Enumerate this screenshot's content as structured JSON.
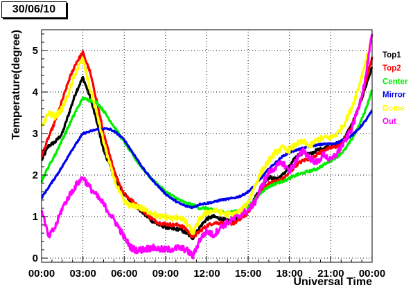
{
  "chart_data": {
    "type": "line",
    "title": "30/06/10",
    "xlabel": "Universal Time",
    "ylabel": "Temperature(degree)",
    "xlim": [
      0,
      24
    ],
    "ylim": [
      -0.1,
      5.5
    ],
    "x_ticks": [
      0,
      3,
      6,
      9,
      12,
      15,
      18,
      21,
      24
    ],
    "x_tick_labels": [
      "00:00",
      "03:00",
      "06:00",
      "09:00",
      "12:00",
      "15:00",
      "18:00",
      "21:00",
      "00:00"
    ],
    "y_ticks": [
      0,
      1,
      2,
      3,
      4,
      5
    ],
    "y_tick_labels": [
      "0",
      "1",
      "2",
      "3",
      "4",
      "5"
    ],
    "grid": true,
    "legend_position": "right",
    "series": [
      {
        "name": "Top1",
        "color": "#000000",
        "x": [
          0,
          0.5,
          1,
          1.5,
          2,
          2.5,
          3,
          3.5,
          4,
          4.5,
          5,
          5.5,
          6,
          6.5,
          7,
          7.5,
          8,
          8.5,
          9,
          9.5,
          10,
          10.5,
          11,
          11.5,
          12,
          12.5,
          13,
          13.5,
          14,
          14.5,
          15,
          15.5,
          16,
          16.5,
          17,
          17.5,
          18,
          18.5,
          19,
          19.5,
          20,
          20.5,
          21,
          21.5,
          22,
          22.5,
          23,
          23.5,
          24
        ],
        "y": [
          2.35,
          2.7,
          2.8,
          3.0,
          3.5,
          4.0,
          4.35,
          3.9,
          3.3,
          2.6,
          2.2,
          1.8,
          1.55,
          1.35,
          1.2,
          1.05,
          0.9,
          0.8,
          0.75,
          0.7,
          0.7,
          0.6,
          0.48,
          0.75,
          0.95,
          1.0,
          0.95,
          0.9,
          0.92,
          1.0,
          1.15,
          1.45,
          1.75,
          1.95,
          1.9,
          2.0,
          2.2,
          2.45,
          2.55,
          2.5,
          2.6,
          2.65,
          2.7,
          2.75,
          2.9,
          3.2,
          3.6,
          4.1,
          4.6
        ]
      },
      {
        "name": "Top2",
        "color": "#ff0000",
        "x": [
          0,
          0.5,
          1,
          1.5,
          2,
          2.5,
          3,
          3.5,
          4,
          4.5,
          5,
          5.5,
          6,
          6.5,
          7,
          7.5,
          8,
          8.5,
          9,
          9.5,
          10,
          10.5,
          11,
          11.5,
          12,
          12.5,
          13,
          13.5,
          14,
          14.5,
          15,
          15.5,
          16,
          16.5,
          17,
          17.5,
          18,
          18.5,
          19,
          19.5,
          20,
          20.5,
          21,
          21.5,
          22,
          22.5,
          23,
          23.5,
          24
        ],
        "y": [
          2.45,
          2.9,
          3.3,
          3.8,
          4.3,
          4.7,
          4.95,
          4.5,
          3.8,
          3.0,
          2.4,
          1.9,
          1.55,
          1.4,
          1.25,
          1.1,
          0.95,
          0.85,
          0.82,
          0.8,
          0.8,
          0.7,
          0.5,
          0.65,
          0.78,
          0.85,
          0.85,
          0.82,
          0.85,
          0.95,
          1.1,
          1.4,
          1.65,
          1.8,
          1.85,
          1.9,
          2.05,
          2.25,
          2.35,
          2.4,
          2.5,
          2.6,
          2.65,
          2.7,
          2.85,
          3.15,
          3.6,
          4.2,
          4.85
        ]
      },
      {
        "name": "Center",
        "color": "#00ee00",
        "x": [
          0,
          0.5,
          1,
          1.5,
          2,
          2.5,
          3,
          3.5,
          4,
          4.5,
          5,
          5.5,
          6,
          6.5,
          7,
          7.5,
          8,
          8.5,
          9,
          9.5,
          10,
          10.5,
          11,
          11.5,
          12,
          12.5,
          13,
          13.5,
          14,
          14.5,
          15,
          15.5,
          16,
          16.5,
          17,
          17.5,
          18,
          18.5,
          19,
          19.5,
          20,
          20.5,
          21,
          21.5,
          22,
          22.5,
          23,
          23.5,
          24
        ],
        "y": [
          1.85,
          2.2,
          2.5,
          2.85,
          3.2,
          3.55,
          3.85,
          3.8,
          3.75,
          3.55,
          3.3,
          3.05,
          2.8,
          2.55,
          2.3,
          2.1,
          1.9,
          1.75,
          1.6,
          1.5,
          1.4,
          1.32,
          1.28,
          1.2,
          1.2,
          1.15,
          1.12,
          1.1,
          1.12,
          1.15,
          1.25,
          1.4,
          1.6,
          1.72,
          1.8,
          1.85,
          1.92,
          2.0,
          2.05,
          2.1,
          2.15,
          2.25,
          2.35,
          2.45,
          2.6,
          2.85,
          3.15,
          3.55,
          4.05
        ]
      },
      {
        "name": "Mirror",
        "color": "#0000ee",
        "x": [
          0,
          0.5,
          1,
          1.5,
          2,
          2.5,
          3,
          3.5,
          4,
          4.5,
          5,
          5.5,
          6,
          6.5,
          7,
          7.5,
          8,
          8.5,
          9,
          9.5,
          10,
          10.5,
          11,
          11.5,
          12,
          12.5,
          13,
          13.5,
          14,
          14.5,
          15,
          15.5,
          16,
          16.5,
          17,
          17.5,
          18,
          18.5,
          19,
          19.5,
          20,
          20.5,
          21,
          21.5,
          22,
          22.5,
          23,
          23.5,
          24
        ],
        "y": [
          1.45,
          1.7,
          1.95,
          2.2,
          2.5,
          2.75,
          3.0,
          3.05,
          3.1,
          3.12,
          3.1,
          3.0,
          2.85,
          2.6,
          2.35,
          2.1,
          1.9,
          1.72,
          1.55,
          1.42,
          1.32,
          1.25,
          1.22,
          1.3,
          1.32,
          1.35,
          1.4,
          1.42,
          1.45,
          1.5,
          1.6,
          1.75,
          1.95,
          2.15,
          2.3,
          2.45,
          2.55,
          2.6,
          2.65,
          2.7,
          2.72,
          2.75,
          2.75,
          2.78,
          2.85,
          2.95,
          3.1,
          3.3,
          3.55
        ]
      },
      {
        "name": "Dome",
        "color": "#ffff00",
        "x": [
          0,
          0.5,
          1,
          1.5,
          2,
          2.5,
          3,
          3.5,
          4,
          4.5,
          5,
          5.5,
          6,
          6.5,
          7,
          7.5,
          8,
          8.5,
          9,
          9.5,
          10,
          10.5,
          11,
          11.5,
          12,
          12.5,
          13,
          13.5,
          14,
          14.5,
          15,
          15.5,
          16,
          16.5,
          17,
          17.5,
          18,
          18.5,
          19,
          19.5,
          20,
          20.5,
          21,
          21.5,
          22,
          22.5,
          23,
          23.5,
          24
        ],
        "y": [
          3.15,
          3.5,
          3.4,
          3.6,
          4.0,
          4.5,
          4.8,
          4.1,
          3.5,
          2.8,
          2.2,
          1.7,
          1.35,
          1.25,
          1.25,
          1.15,
          1.1,
          1.0,
          1.0,
          0.95,
          1.0,
          0.85,
          0.6,
          0.95,
          1.1,
          1.15,
          1.1,
          1.05,
          1.05,
          1.15,
          1.35,
          1.75,
          2.1,
          2.35,
          2.55,
          2.65,
          2.6,
          2.75,
          2.8,
          2.7,
          2.85,
          2.9,
          2.9,
          3.0,
          3.25,
          3.6,
          4.1,
          4.7,
          5.3
        ]
      },
      {
        "name": "Out",
        "color": "#ff00ff",
        "x": [
          0,
          0.5,
          1,
          1.5,
          2,
          2.5,
          3,
          3.5,
          4,
          4.5,
          5,
          5.5,
          6,
          6.5,
          7,
          7.5,
          8,
          8.5,
          9,
          9.5,
          10,
          10.5,
          11,
          11.5,
          12,
          12.5,
          13,
          13.5,
          14,
          14.5,
          15,
          15.5,
          16,
          16.5,
          17,
          17.5,
          18,
          18.5,
          19,
          19.5,
          20,
          20.5,
          21,
          21.5,
          22,
          22.5,
          23,
          23.5,
          24
        ],
        "y": [
          1.2,
          0.5,
          0.75,
          1.2,
          1.5,
          1.75,
          1.95,
          1.7,
          1.5,
          1.3,
          1.05,
          0.8,
          0.5,
          0.25,
          0.18,
          0.22,
          0.25,
          0.22,
          0.2,
          0.22,
          0.25,
          0.2,
          0.05,
          0.45,
          0.65,
          0.55,
          0.75,
          0.85,
          0.95,
          1.05,
          1.15,
          1.35,
          1.75,
          2.05,
          2.2,
          2.3,
          2.1,
          2.35,
          2.6,
          2.4,
          2.3,
          2.5,
          2.35,
          2.55,
          2.8,
          3.1,
          3.6,
          4.3,
          5.4
        ]
      }
    ]
  }
}
